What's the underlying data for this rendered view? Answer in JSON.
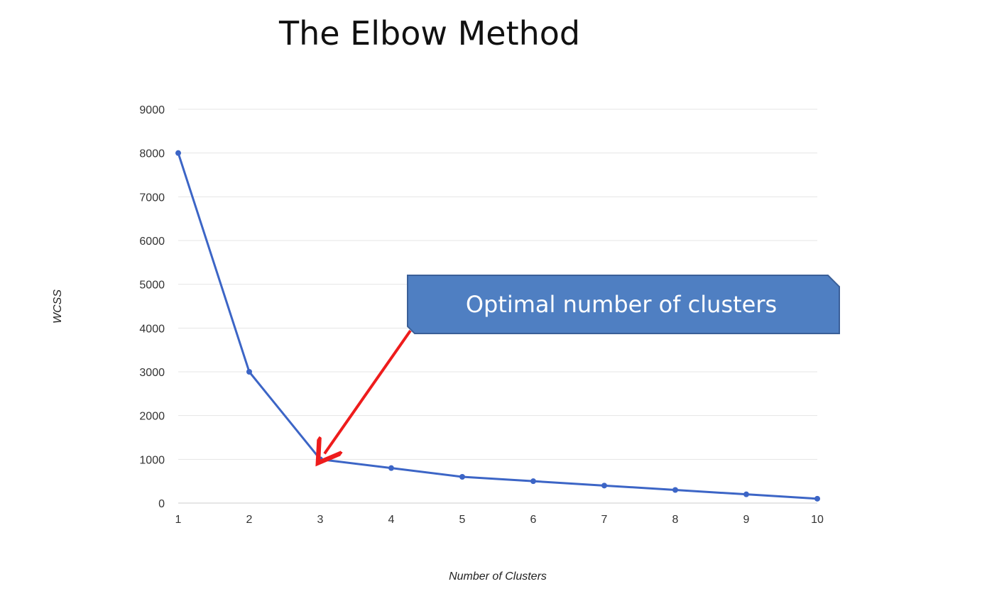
{
  "slide": {
    "title": "The Elbow Method"
  },
  "colors": {
    "line": "#3c65c6",
    "grid": "#e4e4e4",
    "callout_fill": "#4f7fc2",
    "callout_border": "#3a5f98",
    "arrow": "#ee1c1c"
  },
  "chart_data": {
    "type": "line",
    "title": "",
    "xlabel": "Number of Clusters",
    "ylabel": "WCSS",
    "x": [
      1,
      2,
      3,
      4,
      5,
      6,
      7,
      8,
      9,
      10
    ],
    "series": [
      {
        "values": [
          8000,
          3000,
          1000,
          800,
          600,
          500,
          400,
          300,
          200,
          100
        ]
      }
    ],
    "ylim": [
      0,
      9000
    ],
    "yticks": [
      0,
      1000,
      2000,
      3000,
      4000,
      5000,
      6000,
      7000,
      8000,
      9000
    ],
    "grid": true,
    "markers": true,
    "annotation": {
      "text": "Optimal number of clusters",
      "target_x": 3,
      "target_y": 1000
    }
  }
}
